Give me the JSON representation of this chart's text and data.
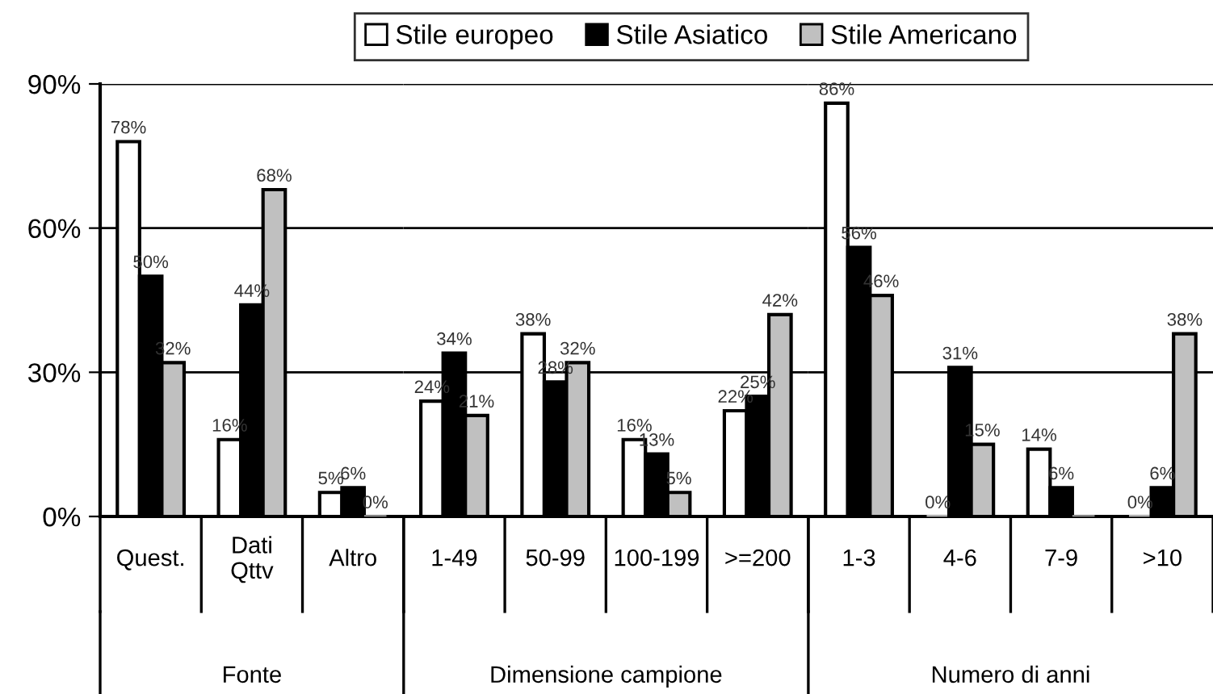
{
  "chart_data": [
    {
      "type": "bar",
      "xlabel": "Fonte",
      "categories": [
        "Quest.",
        "Dati\nQttv",
        "Altro"
      ],
      "series": [
        {
          "name": "Stile europeo",
          "color": "#ffffff",
          "values": [
            78,
            16,
            5
          ],
          "value_labels": [
            "78%",
            "16%",
            "5%"
          ]
        },
        {
          "name": "Stile Asiatico",
          "color": "#000000",
          "values": [
            50,
            44,
            6
          ],
          "value_labels": [
            "50%",
            "44%",
            "6%"
          ]
        },
        {
          "name": "Stile Americano",
          "color": "#c0c0c0",
          "values": [
            32,
            68,
            0
          ],
          "value_labels": [
            "32%",
            "68%",
            "0%"
          ]
        }
      ],
      "ylim": [
        0,
        90
      ],
      "yticks": [
        {
          "value": 0,
          "label": "0%"
        },
        {
          "value": 30,
          "label": "30%"
        },
        {
          "value": 60,
          "label": "60%"
        },
        {
          "value": 90,
          "label": "90%"
        }
      ],
      "grid": "y",
      "legend": "top"
    },
    {
      "type": "bar",
      "xlabel": "Dimensione campione",
      "categories": [
        "1-49",
        "50-99",
        "100-199",
        ">=200"
      ],
      "series": [
        {
          "color": "#ffffff",
          "values": [
            24,
            38,
            16,
            22
          ],
          "value_labels": [
            "24%",
            "38%",
            "16%",
            "22%"
          ]
        },
        {
          "color": "#000000",
          "values": [
            34,
            28,
            13,
            25
          ],
          "value_labels": [
            "34%",
            "28%",
            "13%",
            "25%"
          ]
        },
        {
          "color": "#c0c0c0",
          "values": [
            21,
            32,
            5,
            42
          ],
          "value_labels": [
            "21%",
            "32%",
            "5%",
            "42%"
          ]
        }
      ],
      "ylim": [
        0,
        90
      ],
      "yticks": [
        {
          "value": 0,
          "label": null
        },
        {
          "value": 30,
          "label": null
        },
        {
          "value": 60,
          "label": null
        },
        {
          "value": 90,
          "label": null
        }
      ],
      "grid": "y"
    },
    {
      "type": "bar",
      "xlabel": "Numero di anni",
      "categories": [
        "1-3",
        "4-6",
        "7-9",
        ">10"
      ],
      "series": [
        {
          "color": "#ffffff",
          "values": [
            86,
            0,
            14,
            0
          ],
          "value_labels": [
            "86%",
            "0%",
            "14%",
            "0%"
          ]
        },
        {
          "color": "#000000",
          "values": [
            56,
            31,
            6,
            6
          ],
          "value_labels": [
            "56%",
            "31%",
            "6%",
            "6%"
          ]
        },
        {
          "color": "#c0c0c0",
          "values": [
            46,
            15,
            0,
            38
          ],
          "value_labels": [
            "46%",
            "15%",
            null,
            "38%"
          ]
        }
      ],
      "ylim": [
        0,
        90
      ],
      "yticks": [
        {
          "value": 0,
          "label": null
        },
        {
          "value": 30,
          "label": null
        },
        {
          "value": 60,
          "label": null
        },
        {
          "value": 90,
          "label": null
        }
      ],
      "grid": "y"
    }
  ]
}
